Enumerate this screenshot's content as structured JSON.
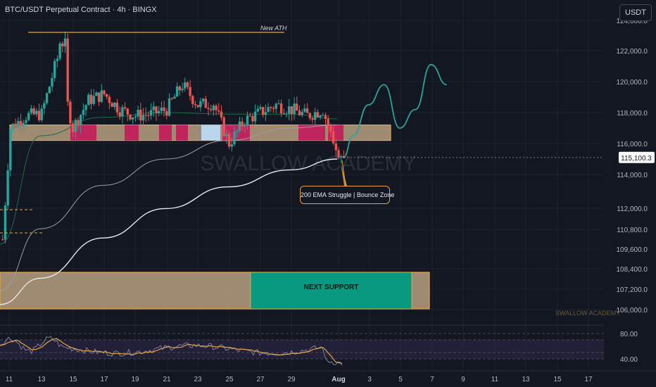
{
  "header": {
    "title": "BTC/USDT Perpetual Contract · 4h · BINGX",
    "currency_button": "USDT"
  },
  "watermark": {
    "center_text": "SWALLOW ACADEMY",
    "corner_text": "SWALLOW ACADEMY"
  },
  "annotations": {
    "ath_label": "New ATH",
    "bounce_label": "200 EMA Struggle | Bounce Zone",
    "support_label": "NEXT SUPPORT"
  },
  "price_axis": {
    "labels": [
      "124,000.0",
      "122,000.0",
      "120,000.0",
      "118,000.0",
      "116,000.0",
      "114,000.0",
      "112,000.0",
      "110,800.0",
      "109,600.0",
      "108,400.0",
      "107,200.0",
      "106,000.0"
    ],
    "current_price_label": "115,100.3",
    "current_price": 115100.3
  },
  "rsi_axis": {
    "labels": [
      "80.00",
      "40.00"
    ]
  },
  "time_axis": {
    "labels": [
      "11",
      "13",
      "15",
      "17",
      "19",
      "21",
      "23",
      "25",
      "27",
      "29",
      "Aug",
      "3",
      "5",
      "7",
      "9",
      "11",
      "13",
      "15",
      "17"
    ]
  },
  "colors": {
    "background": "#131722",
    "candle_up": "#26a69a",
    "candle_down": "#ef5350",
    "zone_fill": "#b8a080",
    "zone_border": "#e8a33c",
    "highlight_down": "#c2185b",
    "highlight_up": "#bbdefb",
    "support_fill": "#089981",
    "projection": "#26a69a",
    "ema_white": "#e8e8e8",
    "ema_gray": "#9e9e9e",
    "ema_green": "#1b6b4a",
    "rsi_line": "#7e7e9e",
    "rsi_ma": "#e8a33c",
    "rsi_band": "#2a2540"
  },
  "chart_data": {
    "type": "candlestick",
    "title": "BTC/USDT Perpetual Contract · 4h · BINGX",
    "x_range": [
      "Jul 10",
      "Aug 17"
    ],
    "y_range": [
      105500,
      124500
    ],
    "current_price": 115100.3,
    "levels": {
      "new_ath": 123200,
      "resistance_zone": [
        116200,
        117200
      ],
      "next_support_zone": [
        106000,
        108400
      ]
    },
    "close_path": [
      {
        "date": "Jul 10",
        "close": 108500
      },
      {
        "date": "Jul 11",
        "close": 117000
      },
      {
        "date": "Jul 12",
        "close": 117800
      },
      {
        "date": "Jul 13",
        "close": 117900
      },
      {
        "date": "Jul 14",
        "close": 121500
      },
      {
        "date": "Jul 15",
        "close": 117000
      },
      {
        "date": "Jul 16",
        "close": 118800
      },
      {
        "date": "Jul 17",
        "close": 119200
      },
      {
        "date": "Jul 18",
        "close": 118200
      },
      {
        "date": "Jul 19",
        "close": 117800
      },
      {
        "date": "Jul 20",
        "close": 117900
      },
      {
        "date": "Jul 21",
        "close": 118200
      },
      {
        "date": "Jul 22",
        "close": 119800
      },
      {
        "date": "Jul 23",
        "close": 118500
      },
      {
        "date": "Jul 24",
        "close": 118600
      },
      {
        "date": "Jul 25",
        "close": 116000
      },
      {
        "date": "Jul 26",
        "close": 117500
      },
      {
        "date": "Jul 27",
        "close": 118000
      },
      {
        "date": "Jul 28",
        "close": 118500
      },
      {
        "date": "Jul 29",
        "close": 118200
      },
      {
        "date": "Jul 30",
        "close": 117800
      },
      {
        "date": "Jul 31",
        "close": 118200
      },
      {
        "date": "Aug 1",
        "close": 115100
      }
    ],
    "emas": [
      {
        "points": [
          {
            "date": "Jul 10",
            "value": 109500
          },
          {
            "date": "Jul 13",
            "value": 116500
          },
          {
            "date": "Jul 17",
            "value": 117700
          },
          {
            "date": "Jul 21",
            "value": 118000
          },
          {
            "date": "Jul 25",
            "value": 117900
          },
          {
            "date": "Jul 29",
            "value": 117900
          },
          {
            "date": "Aug 1",
            "value": 117600
          }
        ]
      },
      {
        "points": [
          {
            "date": "Jul 10",
            "value": 106500
          },
          {
            "date": "Jul 13",
            "value": 110500
          },
          {
            "date": "Jul 17",
            "value": 113300
          },
          {
            "date": "Jul 21",
            "value": 115000
          },
          {
            "date": "Jul 25",
            "value": 116200
          },
          {
            "date": "Jul 29",
            "value": 117000
          },
          {
            "date": "Aug 1",
            "value": 117200
          }
        ]
      },
      {
        "points": [
          {
            "date": "Jul 10",
            "value": 105600
          },
          {
            "date": "Jul 13",
            "value": 107300
          },
          {
            "date": "Jul 17",
            "value": 109900
          },
          {
            "date": "Jul 21",
            "value": 111800
          },
          {
            "date": "Jul 25",
            "value": 113200
          },
          {
            "date": "Jul 29",
            "value": 114300
          },
          {
            "date": "Aug 1",
            "value": 115000
          }
        ]
      }
    ],
    "projection": [
      {
        "date": "Aug 1",
        "value": 115100
      },
      {
        "date": "Aug 2",
        "value": 116500
      },
      {
        "date": "Aug 3",
        "value": 118500
      },
      {
        "date": "Aug 4",
        "value": 119800
      },
      {
        "date": "Aug 5",
        "value": 117000
      },
      {
        "date": "Aug 6",
        "value": 118200
      },
      {
        "date": "Aug 7",
        "value": 121100
      },
      {
        "date": "Aug 8",
        "value": 119800
      }
    ],
    "rsi": {
      "ylim": [
        30,
        90
      ],
      "bands": [
        80,
        70,
        50,
        40
      ],
      "series_end": 32,
      "ma_end": 36
    }
  }
}
